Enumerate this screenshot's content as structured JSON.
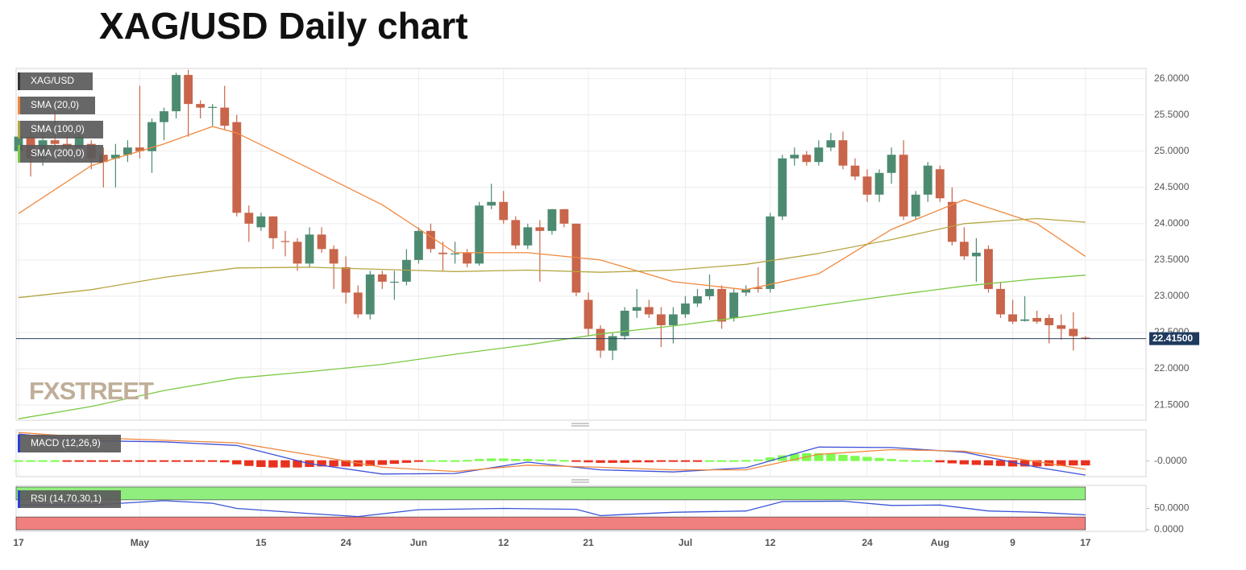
{
  "title": "XAG/USD Daily chart",
  "watermark": "FXSTREET",
  "chart_data": [
    {
      "type": "candlestick",
      "name": "XAG/USD",
      "up_color": "#4d8b71",
      "down_color": "#c8654a",
      "legend_color": "#333333",
      "open": [
        25.0,
        25.2,
        24.9,
        25.15,
        25.1,
        25.05,
        25.1,
        24.95,
        24.9,
        24.95,
        25.05,
        25.0,
        25.4,
        25.55,
        26.05,
        25.65,
        25.6,
        25.6,
        25.4,
        24.15,
        23.95,
        24.1,
        23.76,
        23.75,
        23.45,
        23.85,
        23.65,
        23.4,
        23.05,
        22.75,
        23.3,
        23.19,
        23.2,
        23.5,
        23.9,
        23.6,
        23.58,
        23.6,
        23.45,
        24.25,
        24.3,
        24.05,
        23.7,
        23.95,
        23.9,
        24.2,
        24.0,
        22.95,
        22.55,
        22.25,
        22.45,
        22.8,
        22.85,
        22.75,
        22.6,
        22.75,
        22.9,
        23.0,
        23.1,
        22.7,
        23.05,
        23.12,
        23.1,
        24.1,
        24.9,
        24.95,
        24.85,
        25.05,
        25.15,
        24.8,
        24.65,
        24.4,
        24.7,
        24.95,
        24.1,
        24.4,
        24.75,
        24.3,
        23.75,
        23.55,
        23.65,
        23.1,
        22.75,
        22.66,
        22.7,
        22.7,
        22.6,
        22.55,
        22.43
      ],
      "high": [
        25.35,
        25.3,
        25.25,
        25.55,
        25.25,
        25.3,
        25.15,
        25.05,
        25.1,
        25.15,
        25.9,
        25.45,
        25.6,
        26.08,
        26.12,
        25.7,
        25.65,
        25.9,
        25.5,
        24.25,
        24.15,
        24.1,
        23.9,
        23.8,
        23.95,
        23.95,
        23.7,
        23.55,
        23.15,
        23.35,
        23.35,
        23.35,
        23.65,
        23.95,
        24.0,
        23.75,
        23.75,
        23.65,
        24.3,
        24.55,
        24.45,
        24.1,
        24.0,
        24.05,
        24.2,
        24.2,
        24.0,
        23.05,
        22.6,
        22.5,
        22.85,
        23.1,
        22.95,
        22.85,
        22.85,
        23.0,
        23.1,
        23.3,
        23.15,
        23.1,
        23.15,
        23.4,
        24.15,
        24.95,
        25.05,
        25.0,
        25.15,
        25.25,
        25.27,
        24.9,
        24.75,
        24.75,
        25.05,
        25.15,
        24.45,
        24.85,
        24.8,
        24.5,
        23.95,
        23.8,
        23.7,
        23.2,
        22.95,
        23.0,
        22.8,
        22.75,
        22.75,
        22.78,
        22.45
      ],
      "low": [
        24.9,
        24.65,
        24.8,
        25.0,
        24.85,
        24.9,
        24.75,
        24.5,
        24.5,
        24.85,
        24.9,
        24.7,
        25.15,
        25.45,
        25.2,
        25.45,
        25.35,
        25.3,
        24.1,
        23.75,
        23.9,
        23.65,
        23.55,
        23.35,
        23.4,
        23.6,
        23.1,
        22.9,
        22.7,
        22.68,
        23.1,
        22.95,
        23.15,
        23.45,
        23.6,
        23.35,
        23.45,
        23.4,
        23.42,
        24.2,
        24.0,
        23.65,
        23.65,
        23.2,
        23.85,
        23.95,
        23.0,
        22.45,
        22.15,
        22.12,
        22.4,
        22.7,
        22.7,
        22.3,
        22.35,
        22.7,
        22.85,
        22.95,
        22.55,
        22.65,
        23.0,
        23.05,
        23.05,
        24.05,
        24.8,
        24.8,
        24.8,
        25.0,
        24.75,
        24.6,
        24.3,
        24.3,
        24.55,
        24.05,
        24.05,
        24.3,
        24.3,
        23.7,
        23.5,
        23.2,
        23.05,
        22.7,
        22.62,
        22.65,
        22.62,
        22.35,
        22.4,
        22.25,
        22.4
      ],
      "close": [
        25.2,
        24.9,
        25.15,
        25.1,
        25.05,
        25.2,
        24.9,
        24.85,
        24.95,
        25.05,
        25.0,
        25.4,
        25.55,
        26.05,
        25.65,
        25.6,
        25.61,
        25.35,
        24.15,
        24.0,
        24.1,
        23.8,
        23.75,
        23.45,
        23.85,
        23.65,
        23.45,
        23.05,
        22.75,
        23.3,
        23.2,
        23.2,
        23.5,
        23.9,
        23.65,
        23.58,
        23.59,
        23.45,
        24.25,
        24.3,
        24.05,
        23.7,
        23.95,
        23.9,
        24.2,
        24.0,
        23.05,
        22.55,
        22.25,
        22.45,
        22.8,
        22.85,
        22.75,
        22.6,
        22.75,
        22.9,
        23.0,
        23.1,
        22.65,
        23.05,
        23.1,
        23.1,
        24.1,
        24.9,
        24.95,
        24.85,
        25.05,
        25.15,
        24.8,
        24.65,
        24.4,
        24.7,
        24.95,
        24.1,
        24.4,
        24.8,
        24.35,
        23.75,
        23.55,
        23.6,
        23.1,
        22.75,
        22.65,
        22.68,
        22.65,
        22.6,
        22.55,
        22.45,
        22.415
      ],
      "overlays": [
        {
          "name": "SMA (20,0)",
          "color": "#f0883e",
          "x": [
            0,
            6,
            12,
            16,
            18,
            24,
            30,
            36,
            42,
            48,
            54,
            60,
            66,
            72,
            78,
            84,
            88
          ],
          "values": [
            24.14,
            24.8,
            25.1,
            25.34,
            25.25,
            24.76,
            24.26,
            23.6,
            23.6,
            23.5,
            23.2,
            23.09,
            23.31,
            23.92,
            24.33,
            24.0,
            23.55
          ]
        },
        {
          "name": "SMA (100,0)",
          "color": "#b5a642",
          "x": [
            0,
            6,
            12,
            18,
            24,
            30,
            36,
            42,
            48,
            54,
            60,
            66,
            72,
            78,
            84,
            88
          ],
          "values": [
            22.98,
            23.09,
            23.26,
            23.39,
            23.4,
            23.37,
            23.34,
            23.36,
            23.33,
            23.36,
            23.44,
            23.59,
            23.78,
            24.0,
            24.07,
            24.02
          ]
        },
        {
          "name": "SMA (200,0)",
          "color": "#7ac943",
          "x": [
            0,
            6,
            12,
            18,
            24,
            30,
            36,
            42,
            48,
            54,
            60,
            66,
            72,
            78,
            84,
            88
          ],
          "values": [
            21.31,
            21.48,
            21.7,
            21.87,
            21.96,
            22.06,
            22.2,
            22.33,
            22.48,
            22.59,
            22.72,
            22.87,
            23.01,
            23.14,
            23.24,
            23.29
          ]
        }
      ],
      "last_price": {
        "value": 22.415,
        "label": "22.41500"
      },
      "xlim": [
        -0.2,
        93
      ],
      "xticks": [
        {
          "value": 0,
          "label": "17"
        },
        {
          "value": 10,
          "label": "May"
        },
        {
          "value": 20,
          "label": "15"
        },
        {
          "value": 27,
          "label": "24"
        },
        {
          "value": 33,
          "label": "Jun"
        },
        {
          "value": 40,
          "label": "12"
        },
        {
          "value": 47,
          "label": "21"
        },
        {
          "value": 55,
          "label": "Jul"
        },
        {
          "value": 62,
          "label": "12"
        },
        {
          "value": 70,
          "label": "24"
        },
        {
          "value": 76,
          "label": "Aug"
        },
        {
          "value": 82,
          "label": "9"
        },
        {
          "value": 88,
          "label": "17"
        }
      ],
      "ylim": [
        21.29,
        26.14
      ],
      "yticks": [
        {
          "value": 26,
          "label": "26.0000"
        },
        {
          "value": 25.5,
          "label": "25.5000"
        },
        {
          "value": 25,
          "label": "25.0000"
        },
        {
          "value": 24.5,
          "label": "24.5000"
        },
        {
          "value": 24,
          "label": "24.0000"
        },
        {
          "value": 23.5,
          "label": "23.5000"
        },
        {
          "value": 23,
          "label": "23.0000"
        },
        {
          "value": 22.5,
          "label": "22.5000"
        },
        {
          "value": 22,
          "label": "22.0000"
        },
        {
          "value": 21.5,
          "label": "21.5000"
        }
      ],
      "grid": true
    },
    {
      "type": "combo",
      "name": "MACD (12,26,9)",
      "legend_color": "#2a3fd0",
      "histogram": [
        0.01,
        0.01,
        0.0,
        0.0,
        -0.01,
        -0.01,
        -0.03,
        -0.03,
        -0.03,
        -0.03,
        -0.03,
        -0.03,
        -0.02,
        -0.03,
        -0.03,
        -0.03,
        -0.03,
        -0.04,
        -0.08,
        -0.11,
        -0.13,
        -0.14,
        -0.14,
        -0.14,
        -0.13,
        -0.12,
        -0.12,
        -0.12,
        -0.12,
        -0.11,
        -0.09,
        -0.07,
        -0.05,
        -0.02,
        0.0,
        0.01,
        0.01,
        0.02,
        0.04,
        0.05,
        0.05,
        0.04,
        0.04,
        0.03,
        0.03,
        0.02,
        -0.02,
        -0.04,
        -0.05,
        -0.05,
        -0.05,
        -0.04,
        -0.04,
        -0.03,
        -0.03,
        -0.02,
        -0.01,
        0.0,
        0.01,
        0.01,
        0.02,
        0.03,
        0.07,
        0.11,
        0.14,
        0.15,
        0.15,
        0.14,
        0.12,
        0.1,
        0.08,
        0.06,
        0.04,
        0.02,
        0.01,
        0.0,
        -0.04,
        -0.06,
        -0.08,
        -0.09,
        -0.1,
        -0.11,
        -0.12,
        -0.12,
        -0.12,
        -0.11,
        -0.11,
        -0.1,
        -0.1
      ],
      "pos_color": "#7cfc50",
      "neg_color": "#e8321e",
      "lines": [
        {
          "color": "#3f51d8",
          "x": [
            0,
            6,
            12,
            18,
            24,
            30,
            36,
            42,
            48,
            54,
            60,
            66,
            72,
            78,
            84,
            88
          ],
          "values": [
            0.52,
            0.39,
            0.37,
            0.3,
            -0.05,
            -0.25,
            -0.24,
            -0.02,
            -0.17,
            -0.21,
            -0.13,
            0.27,
            0.26,
            0.17,
            -0.12,
            -0.27
          ]
        },
        {
          "color": "#f0883e",
          "x": [
            0,
            6,
            12,
            18,
            24,
            30,
            36,
            42,
            48,
            54,
            60,
            66,
            72,
            78,
            84,
            88
          ],
          "values": [
            0.55,
            0.45,
            0.4,
            0.35,
            0.12,
            -0.12,
            -0.2,
            -0.08,
            -0.12,
            -0.17,
            -0.17,
            0.13,
            0.22,
            0.19,
            -0.01,
            -0.16
          ]
        }
      ],
      "ylim": [
        -0.3,
        0.6
      ],
      "yticks": [
        {
          "value": 0,
          "label": "-0.0000"
        }
      ]
    },
    {
      "type": "line",
      "name": "RSI (14,70,30,1)",
      "legend_color": "#2a3fd0",
      "bands": [
        {
          "from": 70,
          "to": 100,
          "color": "#90ee7e"
        },
        {
          "from": 0,
          "to": 30,
          "color": "#f08080"
        }
      ],
      "lines": [
        {
          "color": "#3a55d6",
          "x": [
            0,
            6,
            12,
            16,
            18,
            24,
            28,
            33,
            40,
            46,
            48,
            54,
            60,
            63,
            68,
            72,
            76,
            80,
            84,
            88
          ],
          "values": [
            58,
            58,
            68,
            62,
            50,
            38,
            31,
            47,
            50,
            48,
            33,
            41,
            44,
            66,
            67,
            57,
            58,
            44,
            41,
            35
          ]
        }
      ],
      "ylim": [
        -3.7,
        103.7
      ],
      "yticks": [
        {
          "value": 50,
          "label": "50.0000"
        },
        {
          "value": 0,
          "label": "0.0000"
        }
      ]
    }
  ]
}
